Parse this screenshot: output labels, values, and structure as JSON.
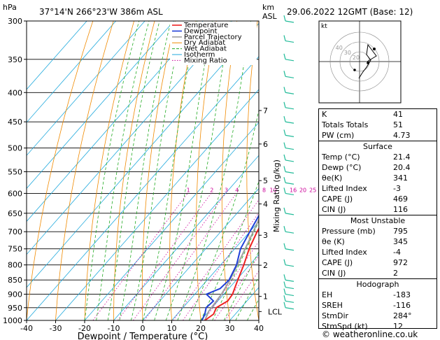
{
  "header": {
    "pressure_unit": "hPa",
    "location": "37°14'N 266°23'W 386m ASL",
    "km_label": "km",
    "asl_label": "ASL",
    "datetime": "29.06.2022 12GMT (Base: 12)"
  },
  "footer": {
    "credit": "© weatheronline.co.uk"
  },
  "colors": {
    "temperature": "#ee2222",
    "dewpoint": "#1f3fd8",
    "parcel": "#a0a0a0",
    "dry_adiabat": "#f08a00",
    "wet_adiabat": "#22aa22",
    "isotherm": "#22aadd",
    "mixing_ratio": "#cc0099",
    "wind": "#22bb99"
  },
  "chart_data": {
    "type": "line",
    "xlabel": "Dewpoint / Temperature (°C)",
    "ylabel_right": "Mixing Ratio (g/kg)",
    "xlim": [
      -40,
      40
    ],
    "ylim": [
      1000,
      300
    ],
    "x_ticks": [
      "-40",
      "-30",
      "-20",
      "-10",
      "0",
      "10",
      "20",
      "30",
      "40"
    ],
    "pressure_ticks": [
      "300",
      "350",
      "400",
      "450",
      "500",
      "550",
      "600",
      "650",
      "700",
      "750",
      "800",
      "850",
      "900",
      "950",
      "1000"
    ],
    "height_ticks": [
      {
        "label": "7",
        "p": 430
      },
      {
        "label": "6",
        "p": 492
      },
      {
        "label": "5",
        "p": 570
      },
      {
        "label": "4",
        "p": 626
      },
      {
        "label": "3",
        "p": 710
      },
      {
        "label": "2",
        "p": 801
      },
      {
        "label": "1",
        "p": 908
      },
      {
        "label": "LCL",
        "p": 965
      }
    ],
    "mixing_ratio_labels": [
      "1",
      "2",
      "3",
      "4",
      "8",
      "10",
      "16",
      "20",
      "25"
    ],
    "mixing_ratio_values": [
      1,
      2,
      3,
      4,
      8,
      10,
      16,
      20,
      25
    ],
    "legend": [
      "Temperature",
      "Dewpoint",
      "Parcel Trajectory",
      "Dry Adiabat",
      "Wet Adiabat",
      "Isotherm",
      "Mixing Ratio"
    ],
    "series": [
      {
        "name": "Temperature",
        "points": [
          [
            1000,
            21.4
          ],
          [
            975,
            22.5
          ],
          [
            950,
            21.5
          ],
          [
            925,
            23.4
          ],
          [
            900,
            23
          ],
          [
            850,
            20.5
          ],
          [
            800,
            18
          ],
          [
            750,
            15
          ],
          [
            700,
            12.5
          ],
          [
            650,
            10.5
          ],
          [
            600,
            7.5
          ],
          [
            550,
            3
          ],
          [
            500,
            -2
          ],
          [
            450,
            -6.5
          ],
          [
            430,
            -4.5
          ],
          [
            400,
            -10
          ],
          [
            350,
            -17.5
          ],
          [
            300,
            -25
          ]
        ]
      },
      {
        "name": "Dewpoint",
        "points": [
          [
            1000,
            20.4
          ],
          [
            975,
            19.5
          ],
          [
            950,
            18
          ],
          [
            925,
            18.5
          ],
          [
            900,
            14
          ],
          [
            880,
            17
          ],
          [
            850,
            17.5
          ],
          [
            800,
            15.5
          ],
          [
            750,
            12
          ],
          [
            700,
            10
          ],
          [
            650,
            8
          ],
          [
            600,
            4
          ],
          [
            550,
            1
          ],
          [
            530,
            -1
          ],
          [
            500,
            -8
          ],
          [
            470,
            -15
          ],
          [
            450,
            -6
          ],
          [
            440,
            -11
          ],
          [
            420,
            -8.5
          ],
          [
            400,
            -17
          ],
          [
            350,
            -19
          ],
          [
            300,
            -24
          ]
        ]
      },
      {
        "name": "Parcel Trajectory",
        "points": [
          [
            1000,
            21.4
          ],
          [
            965,
            20
          ],
          [
            900,
            19.2
          ],
          [
            850,
            17.8
          ],
          [
            800,
            15.8
          ],
          [
            750,
            13.6
          ],
          [
            700,
            11.2
          ],
          [
            650,
            8.5
          ],
          [
            600,
            5.5
          ],
          [
            550,
            2.2
          ],
          [
            500,
            -1.5
          ],
          [
            450,
            -5.7
          ],
          [
            400,
            -10.6
          ],
          [
            350,
            -16.3
          ],
          [
            300,
            -23
          ]
        ]
      }
    ],
    "wind_barbs_pressure": [
      300,
      325,
      350,
      375,
      400,
      425,
      450,
      475,
      500,
      525,
      550,
      575,
      600,
      650,
      700,
      750,
      800,
      850,
      875,
      900,
      925,
      950
    ]
  },
  "hodograph": {
    "unit_label": "kt",
    "ring_labels": [
      "40",
      "30",
      "20"
    ]
  },
  "indices": {
    "rows": [
      {
        "label": "K",
        "value": "41"
      },
      {
        "label": "Totals Totals",
        "value": "51"
      },
      {
        "label": "PW (cm)",
        "value": "4.73"
      }
    ]
  },
  "surface": {
    "title": "Surface",
    "rows": [
      {
        "label": "Temp (°C)",
        "value": "21.4"
      },
      {
        "label": "Dewp (°C)",
        "value": "20.4"
      },
      {
        "label": "θe(K)",
        "value": "341"
      },
      {
        "label": "Lifted Index",
        "value": "-3"
      },
      {
        "label": "CAPE (J)",
        "value": "469"
      },
      {
        "label": "CIN (J)",
        "value": "116"
      }
    ]
  },
  "most_unstable": {
    "title": "Most Unstable",
    "rows": [
      {
        "label": "Pressure (mb)",
        "value": "795"
      },
      {
        "label": "θe (K)",
        "value": "345"
      },
      {
        "label": "Lifted Index",
        "value": "-4"
      },
      {
        "label": "CAPE (J)",
        "value": "972"
      },
      {
        "label": "CIN (J)",
        "value": "2"
      }
    ]
  },
  "hodograph_table": {
    "title": "Hodograph",
    "rows": [
      {
        "label": "EH",
        "value": "-183"
      },
      {
        "label": "SREH",
        "value": "-116"
      },
      {
        "label": "StmDir",
        "value": "284°"
      },
      {
        "label": "StmSpd (kt)",
        "value": "12"
      }
    ]
  }
}
